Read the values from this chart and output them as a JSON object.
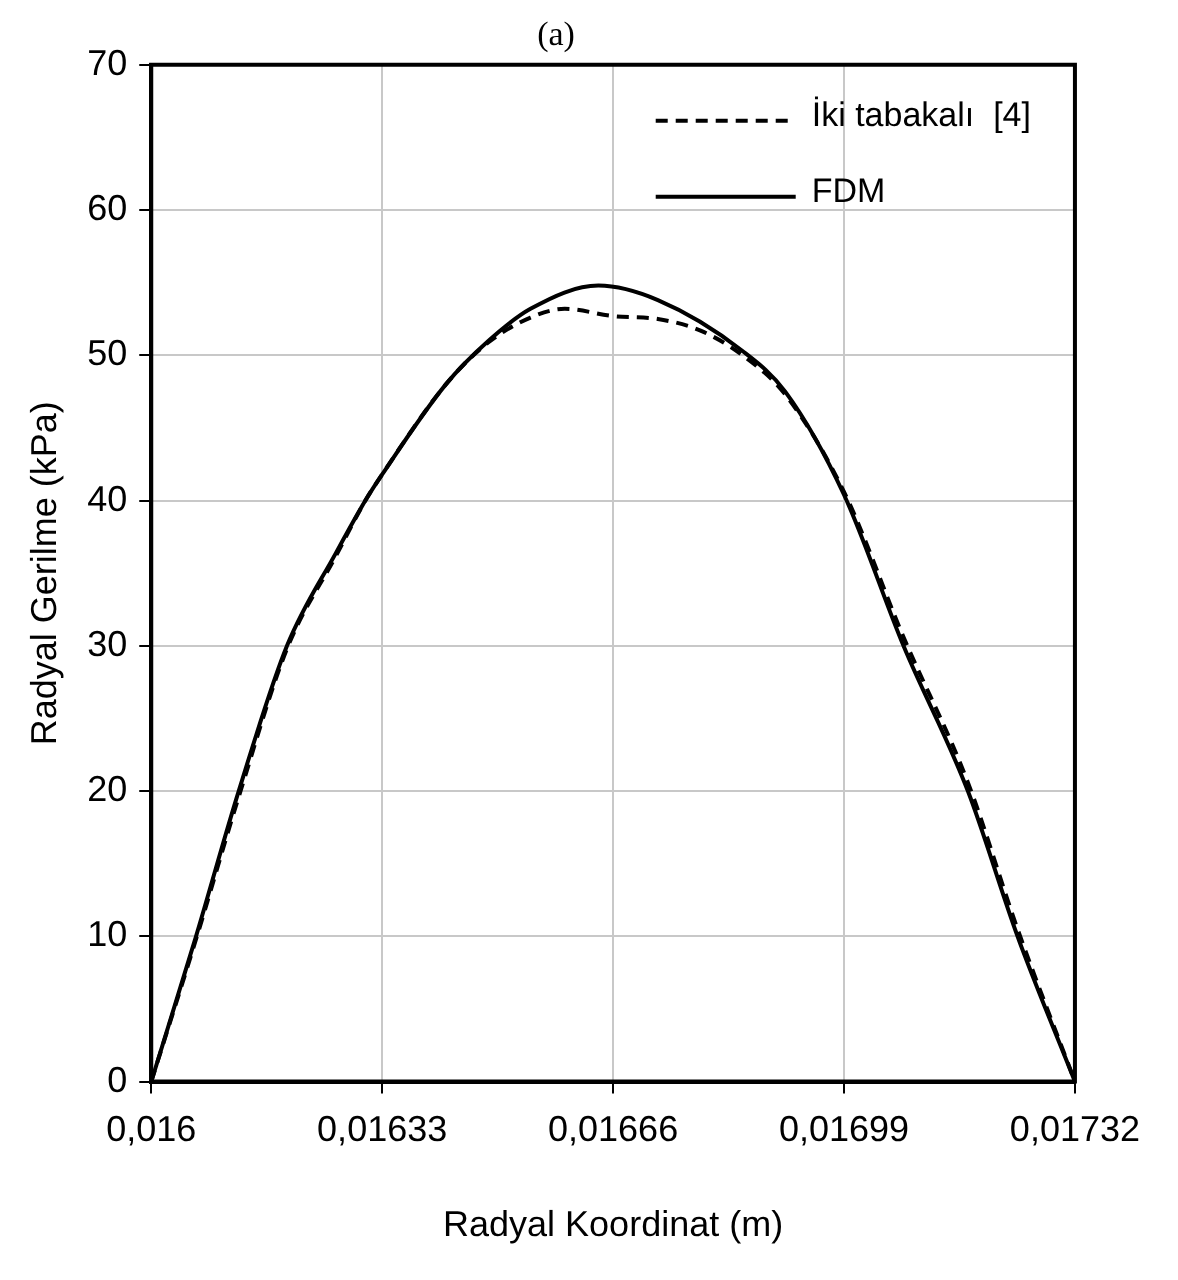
{
  "chart_data": {
    "type": "line",
    "title": "(a)",
    "xlabel": "Radyal Koordinat (m)",
    "ylabel": "Radyal Gerilme (kPa)",
    "xlim": [
      0.016,
      0.01732
    ],
    "ylim": [
      0,
      70
    ],
    "xticks": [
      {
        "value": 0.016,
        "label": "0,016"
      },
      {
        "value": 0.01633,
        "label": "0,01633"
      },
      {
        "value": 0.01666,
        "label": "0,01666"
      },
      {
        "value": 0.01699,
        "label": "0,01699"
      },
      {
        "value": 0.01732,
        "label": "0,01732"
      }
    ],
    "yticks": [
      0,
      10,
      20,
      30,
      40,
      50,
      60,
      70
    ],
    "grid": true,
    "legend": "top right",
    "marker": "none",
    "series": [
      {
        "name": "İki tabakalı  [4]",
        "color": "#000000",
        "line_style": "dashed",
        "x": [
          0.016,
          0.016064,
          0.016125,
          0.016194,
          0.016264,
          0.016306,
          0.01633,
          0.016421,
          0.016482,
          0.016542,
          0.016591,
          0.01666,
          0.016724,
          0.016785,
          0.016845,
          0.016906,
          0.01699,
          0.017075,
          0.017167,
          0.017238,
          0.01732
        ],
        "values": [
          0,
          9.8,
          19.6,
          29.8,
          36.2,
          40,
          41.8,
          48,
          50.9,
          52.6,
          53.2,
          52.7,
          52.5,
          51.7,
          50,
          47.3,
          40.6,
          30.6,
          20.6,
          10.5,
          0
        ]
      },
      {
        "name": "FDM",
        "color": "#000000",
        "line_style": "solid",
        "x": [
          0.016,
          0.016064,
          0.016125,
          0.016194,
          0.016264,
          0.016306,
          0.01633,
          0.016421,
          0.016482,
          0.016542,
          0.016639,
          0.016724,
          0.016845,
          0.016906,
          0.01699,
          0.017075,
          0.017167,
          0.017238,
          0.01732
        ],
        "values": [
          0,
          10,
          20,
          30,
          36.4,
          40,
          41.8,
          48,
          51,
          53.2,
          54.8,
          53.8,
          50.3,
          47.5,
          40.4,
          30,
          20,
          10,
          0
        ]
      }
    ]
  }
}
